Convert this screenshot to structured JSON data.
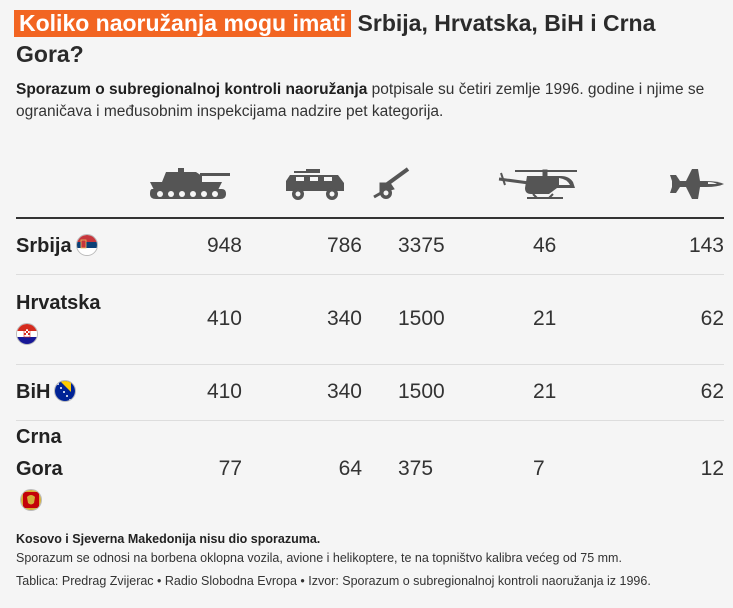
{
  "title_highlight": "Koliko naoružanja mogu imati",
  "title_rest": " Srbija, Hrvatska, BiH i Crna Gora?",
  "intro_bold": "Sporazum o subregionalnoj kontroli naoružanja",
  "intro_rest": " potpisale su četiri zemlje 1996. godine i njime se ograničava i međusobnim inspekcijama nadzire pet kategorija.",
  "icons": [
    "tank-icon",
    "armored-vehicle-icon",
    "artillery-icon",
    "helicopter-icon",
    "fighter-jet-icon"
  ],
  "colors": {
    "highlight": "#f26522",
    "icon": "#555555"
  },
  "chart_data": {
    "type": "table",
    "columns": [
      "tank-icon",
      "armored-vehicle-icon",
      "artillery-icon",
      "helicopter-icon",
      "fighter-jet-icon"
    ],
    "rows": [
      {
        "country": "Srbija",
        "flag": "serbia-flag-icon",
        "values": [
          "948",
          "786",
          "3375",
          "46",
          "143"
        ]
      },
      {
        "country": "Hrvatska",
        "flag": "croatia-flag-icon",
        "values": [
          "410",
          "340",
          "1500",
          "21",
          "62"
        ]
      },
      {
        "country": "BiH",
        "flag": "bih-flag-icon",
        "values": [
          "410",
          "340",
          "1500",
          "21",
          "62"
        ]
      },
      {
        "country": "Crna Gora",
        "flag": "montenegro-flag-icon",
        "values": [
          "77",
          "64",
          "375",
          "7",
          "12"
        ]
      }
    ]
  },
  "notes": {
    "note1": "Kosovo i Sjeverna Makedonija nisu dio sporazuma.",
    "note2": "Sporazum se odnosi na borbena oklopna vozila, avione i helikoptere, te na topništvo kalibra većeg od 75 mm.",
    "source": "Tablica: Predrag Zvijerac • Radio Slobodna Evropa • Izvor: Sporazum o subregionalnoj kontroli naoružanja iz 1996."
  }
}
